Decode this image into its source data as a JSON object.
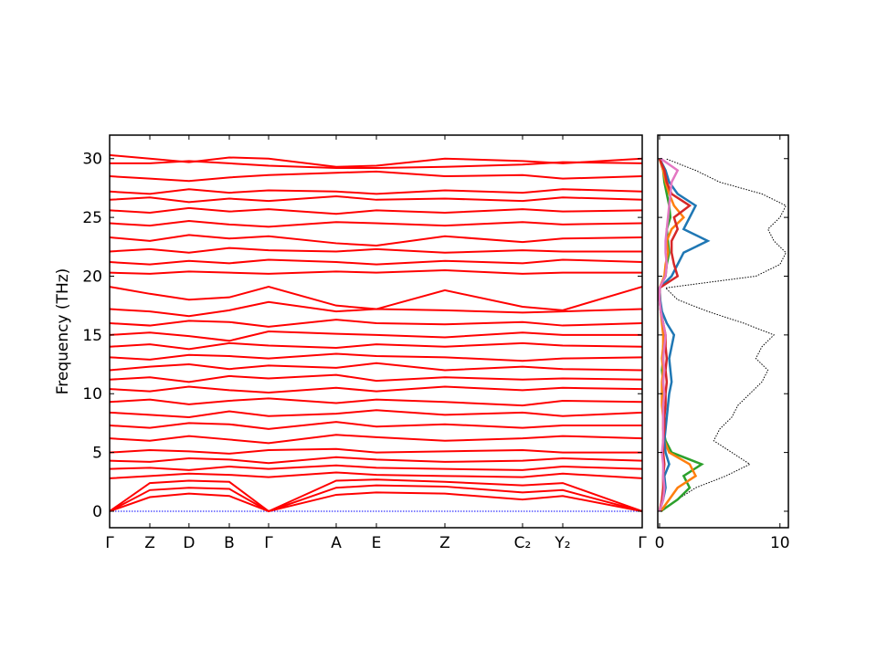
{
  "chart_data": [
    {
      "type": "line",
      "y_label": "Frequency (THz)",
      "x": [
        0,
        0.0755,
        0.149,
        0.2247,
        0.2985,
        0.4254,
        0.5009,
        0.6295,
        0.7753,
        0.8508,
        1
      ],
      "xlim": [
        0,
        1
      ],
      "xticks": [
        {
          "value": 0,
          "label": "Γ"
        },
        {
          "value": 0.0755,
          "label": "Z"
        },
        {
          "value": 0.149,
          "label": "D"
        },
        {
          "value": 0.2247,
          "label": "B"
        },
        {
          "value": 0.2985,
          "label": "Γ"
        },
        {
          "value": 0.4254,
          "label": "A"
        },
        {
          "value": 0.5009,
          "label": "E"
        },
        {
          "value": 0.6295,
          "label": "Z"
        },
        {
          "value": 0.7753,
          "label": "C₂"
        },
        {
          "value": 0.8508,
          "label": "Y₂"
        },
        {
          "value": 1,
          "label": "Γ"
        }
      ],
      "ylim": [
        -1.4,
        32
      ],
      "yticks": [
        0,
        5,
        10,
        15,
        20,
        25,
        30
      ],
      "series": [
        {
          "color": "#0000ff",
          "linestyle": "dotted",
          "values": [
            0,
            0,
            0,
            0,
            0,
            0,
            0,
            0,
            0,
            0,
            0
          ]
        },
        {
          "color": "#ff0000",
          "values": [
            0,
            1.2,
            1.5,
            1.3,
            0,
            1.4,
            1.6,
            1.5,
            1.0,
            1.3,
            0
          ]
        },
        {
          "color": "#ff0000",
          "values": [
            0,
            1.8,
            2.0,
            1.9,
            0,
            2.0,
            2.2,
            2.1,
            1.6,
            1.8,
            0
          ]
        },
        {
          "color": "#ff0000",
          "values": [
            0,
            2.4,
            2.6,
            2.5,
            0,
            2.6,
            2.7,
            2.5,
            2.2,
            2.4,
            0
          ]
        },
        {
          "color": "#ff0000",
          "values": [
            2.8,
            3.0,
            3.2,
            3.1,
            2.9,
            3.3,
            3.1,
            3.0,
            2.9,
            3.2,
            2.8
          ]
        },
        {
          "color": "#ff0000",
          "values": [
            3.6,
            3.7,
            3.5,
            3.8,
            3.6,
            3.9,
            3.7,
            3.6,
            3.5,
            3.8,
            3.6
          ]
        },
        {
          "color": "#ff0000",
          "values": [
            4.3,
            4.2,
            4.5,
            4.4,
            4.1,
            4.6,
            4.4,
            4.2,
            4.3,
            4.5,
            4.3
          ]
        },
        {
          "color": "#ff0000",
          "values": [
            5.0,
            5.2,
            5.1,
            4.9,
            5.2,
            5.3,
            5.0,
            5.1,
            5.2,
            5.0,
            5.0
          ]
        },
        {
          "color": "#ff0000",
          "values": [
            6.2,
            6.0,
            6.4,
            6.1,
            5.8,
            6.5,
            6.3,
            6.0,
            6.2,
            6.4,
            6.2
          ]
        },
        {
          "color": "#ff0000",
          "values": [
            7.3,
            7.1,
            7.5,
            7.4,
            7.0,
            7.6,
            7.2,
            7.4,
            7.1,
            7.3,
            7.3
          ]
        },
        {
          "color": "#ff0000",
          "values": [
            8.4,
            8.2,
            8.0,
            8.5,
            8.1,
            8.3,
            8.6,
            8.2,
            8.4,
            8.1,
            8.4
          ]
        },
        {
          "color": "#ff0000",
          "values": [
            9.3,
            9.5,
            9.1,
            9.4,
            9.6,
            9.2,
            9.5,
            9.3,
            9.0,
            9.4,
            9.3
          ]
        },
        {
          "color": "#ff0000",
          "values": [
            10.4,
            10.2,
            10.6,
            10.3,
            10.1,
            10.5,
            10.2,
            10.6,
            10.3,
            10.5,
            10.4
          ]
        },
        {
          "color": "#ff0000",
          "values": [
            11.2,
            11.4,
            11.0,
            11.5,
            11.3,
            11.6,
            11.1,
            11.4,
            11.2,
            11.3,
            11.2
          ]
        },
        {
          "color": "#ff0000",
          "values": [
            12.0,
            12.3,
            12.5,
            12.1,
            12.4,
            12.2,
            12.6,
            12.0,
            12.3,
            12.1,
            12.0
          ]
        },
        {
          "color": "#ff0000",
          "values": [
            13.1,
            12.9,
            13.3,
            13.2,
            13.0,
            13.4,
            13.2,
            13.1,
            12.8,
            13.0,
            13.1
          ]
        },
        {
          "color": "#ff0000",
          "values": [
            14.0,
            14.2,
            13.8,
            14.3,
            14.1,
            13.9,
            14.2,
            14.0,
            14.3,
            14.1,
            14.0
          ]
        },
        {
          "color": "#ff0000",
          "values": [
            15.0,
            15.2,
            14.9,
            14.5,
            15.3,
            15.1,
            15.0,
            14.8,
            15.2,
            15.0,
            15.0
          ]
        },
        {
          "color": "#ff0000",
          "values": [
            16.0,
            15.8,
            16.2,
            16.1,
            15.7,
            16.3,
            16.0,
            15.9,
            16.1,
            15.8,
            16.0
          ]
        },
        {
          "color": "#ff0000",
          "values": [
            17.2,
            17.0,
            16.6,
            17.1,
            17.8,
            17.0,
            17.2,
            17.1,
            16.9,
            17.0,
            17.2
          ]
        },
        {
          "color": "#ff0000",
          "values": [
            19.1,
            18.5,
            18.0,
            18.2,
            19.1,
            17.5,
            17.2,
            18.8,
            17.4,
            17.1,
            19.1
          ]
        },
        {
          "color": "#ff0000",
          "values": [
            20.3,
            20.2,
            20.4,
            20.3,
            20.2,
            20.4,
            20.3,
            20.5,
            20.2,
            20.3,
            20.3
          ]
        },
        {
          "color": "#ff0000",
          "values": [
            21.2,
            21.0,
            21.3,
            21.1,
            21.4,
            21.2,
            21.0,
            21.3,
            21.1,
            21.4,
            21.2
          ]
        },
        {
          "color": "#ff0000",
          "values": [
            22.1,
            22.3,
            22.0,
            22.4,
            22.2,
            22.1,
            22.3,
            22.0,
            22.2,
            22.1,
            22.1
          ]
        },
        {
          "color": "#ff0000",
          "values": [
            23.3,
            23.0,
            23.5,
            23.2,
            23.4,
            22.8,
            22.6,
            23.4,
            22.9,
            23.2,
            23.3
          ]
        },
        {
          "color": "#ff0000",
          "values": [
            24.5,
            24.3,
            24.7,
            24.4,
            24.2,
            24.6,
            24.5,
            24.3,
            24.6,
            24.4,
            24.5
          ]
        },
        {
          "color": "#ff0000",
          "values": [
            25.6,
            25.4,
            25.8,
            25.5,
            25.7,
            25.3,
            25.6,
            25.4,
            25.7,
            25.5,
            25.6
          ]
        },
        {
          "color": "#ff0000",
          "values": [
            26.5,
            26.7,
            26.3,
            26.6,
            26.4,
            26.8,
            26.5,
            26.6,
            26.4,
            26.7,
            26.5
          ]
        },
        {
          "color": "#ff0000",
          "values": [
            27.2,
            27.0,
            27.4,
            27.1,
            27.3,
            27.2,
            27.0,
            27.3,
            27.1,
            27.4,
            27.2
          ]
        },
        {
          "color": "#ff0000",
          "values": [
            28.5,
            28.3,
            28.1,
            28.4,
            28.6,
            28.8,
            28.9,
            28.5,
            28.6,
            28.3,
            28.5
          ]
        },
        {
          "color": "#ff0000",
          "values": [
            29.6,
            29.6,
            29.8,
            29.6,
            29.4,
            29.2,
            29.2,
            29.3,
            29.5,
            29.7,
            29.6
          ]
        },
        {
          "color": "#ff0000",
          "values": [
            30.3,
            30.0,
            29.7,
            30.1,
            30.0,
            29.3,
            29.4,
            30.0,
            29.8,
            29.6,
            30.0
          ]
        }
      ]
    },
    {
      "type": "dos",
      "y": [
        0,
        1,
        2,
        3,
        4,
        5,
        6,
        7,
        8,
        9,
        10,
        11,
        12,
        13,
        14,
        15,
        16,
        17,
        18,
        19,
        20,
        21,
        22,
        23,
        24,
        25,
        26,
        27,
        28,
        29,
        30
      ],
      "xlim": [
        -0.15,
        10.7
      ],
      "xticks": [
        0,
        10
      ],
      "ylim": [
        -1.4,
        32
      ],
      "yticks": [
        0,
        5,
        10,
        15,
        20,
        25,
        30
      ],
      "series": [
        {
          "color": "#000000",
          "linestyle": "dotted",
          "values": [
            0.2,
            1.5,
            3.0,
            5.5,
            7.5,
            6.0,
            4.5,
            5.0,
            6.0,
            6.5,
            7.5,
            8.5,
            9.0,
            8.0,
            8.5,
            9.5,
            7.0,
            4.0,
            1.5,
            0.5,
            8.0,
            10.0,
            10.5,
            9.5,
            9.0,
            10.0,
            10.5,
            8.5,
            5.0,
            3.0,
            0.5
          ]
        },
        {
          "color": "#2ca02c",
          "values": [
            0.1,
            1.5,
            2.5,
            2.0,
            3.5,
            1.0,
            0.5,
            0.3,
            0.4,
            0.3,
            0.2,
            0.3,
            0.2,
            0.3,
            0.3,
            0.4,
            0.3,
            0.1,
            0.05,
            0,
            0.5,
            0.6,
            0.8,
            0.7,
            0.6,
            0.9,
            0.8,
            0.6,
            0.4,
            0.3,
            0
          ]
        },
        {
          "color": "#ff7f0e",
          "values": [
            0.1,
            0.8,
            1.5,
            3.0,
            2.5,
            0.8,
            0.4,
            0.3,
            0.3,
            0.2,
            0.2,
            0.2,
            0.3,
            0.2,
            0.3,
            0.3,
            0.2,
            0.1,
            0,
            0,
            0.4,
            0.5,
            0.7,
            0.6,
            1.0,
            2.0,
            1.2,
            0.8,
            0.5,
            0.3,
            0
          ]
        },
        {
          "color": "#1f77b4",
          "values": [
            0,
            0.3,
            0.5,
            0.4,
            0.8,
            0.5,
            0.4,
            0.5,
            0.6,
            0.7,
            0.8,
            1.0,
            0.9,
            0.8,
            1.0,
            1.2,
            0.6,
            0.2,
            0.05,
            0,
            1.0,
            1.5,
            2.0,
            4.0,
            2.0,
            2.5,
            3.0,
            1.5,
            0.8,
            0.5,
            0
          ]
        },
        {
          "color": "#d62728",
          "values": [
            0,
            0.2,
            0.3,
            0.3,
            0.4,
            0.3,
            0.3,
            0.4,
            0.4,
            0.5,
            0.5,
            0.6,
            0.5,
            0.6,
            0.5,
            0.5,
            0.3,
            0.1,
            0,
            0,
            1.5,
            1.2,
            1.0,
            1.0,
            1.5,
            1.2,
            2.5,
            1.0,
            0.6,
            0.4,
            0
          ]
        },
        {
          "color": "#e377c2",
          "values": [
            0,
            0.3,
            0.4,
            0.3,
            0.3,
            0.2,
            0.3,
            0.3,
            0.3,
            0.3,
            0.4,
            0.3,
            0.4,
            0.3,
            0.4,
            0.5,
            0.3,
            0.1,
            0,
            0,
            0.5,
            0.6,
            0.5,
            0.5,
            0.6,
            0.7,
            0.8,
            0.9,
            1.0,
            1.5,
            0.1
          ]
        }
      ]
    }
  ]
}
